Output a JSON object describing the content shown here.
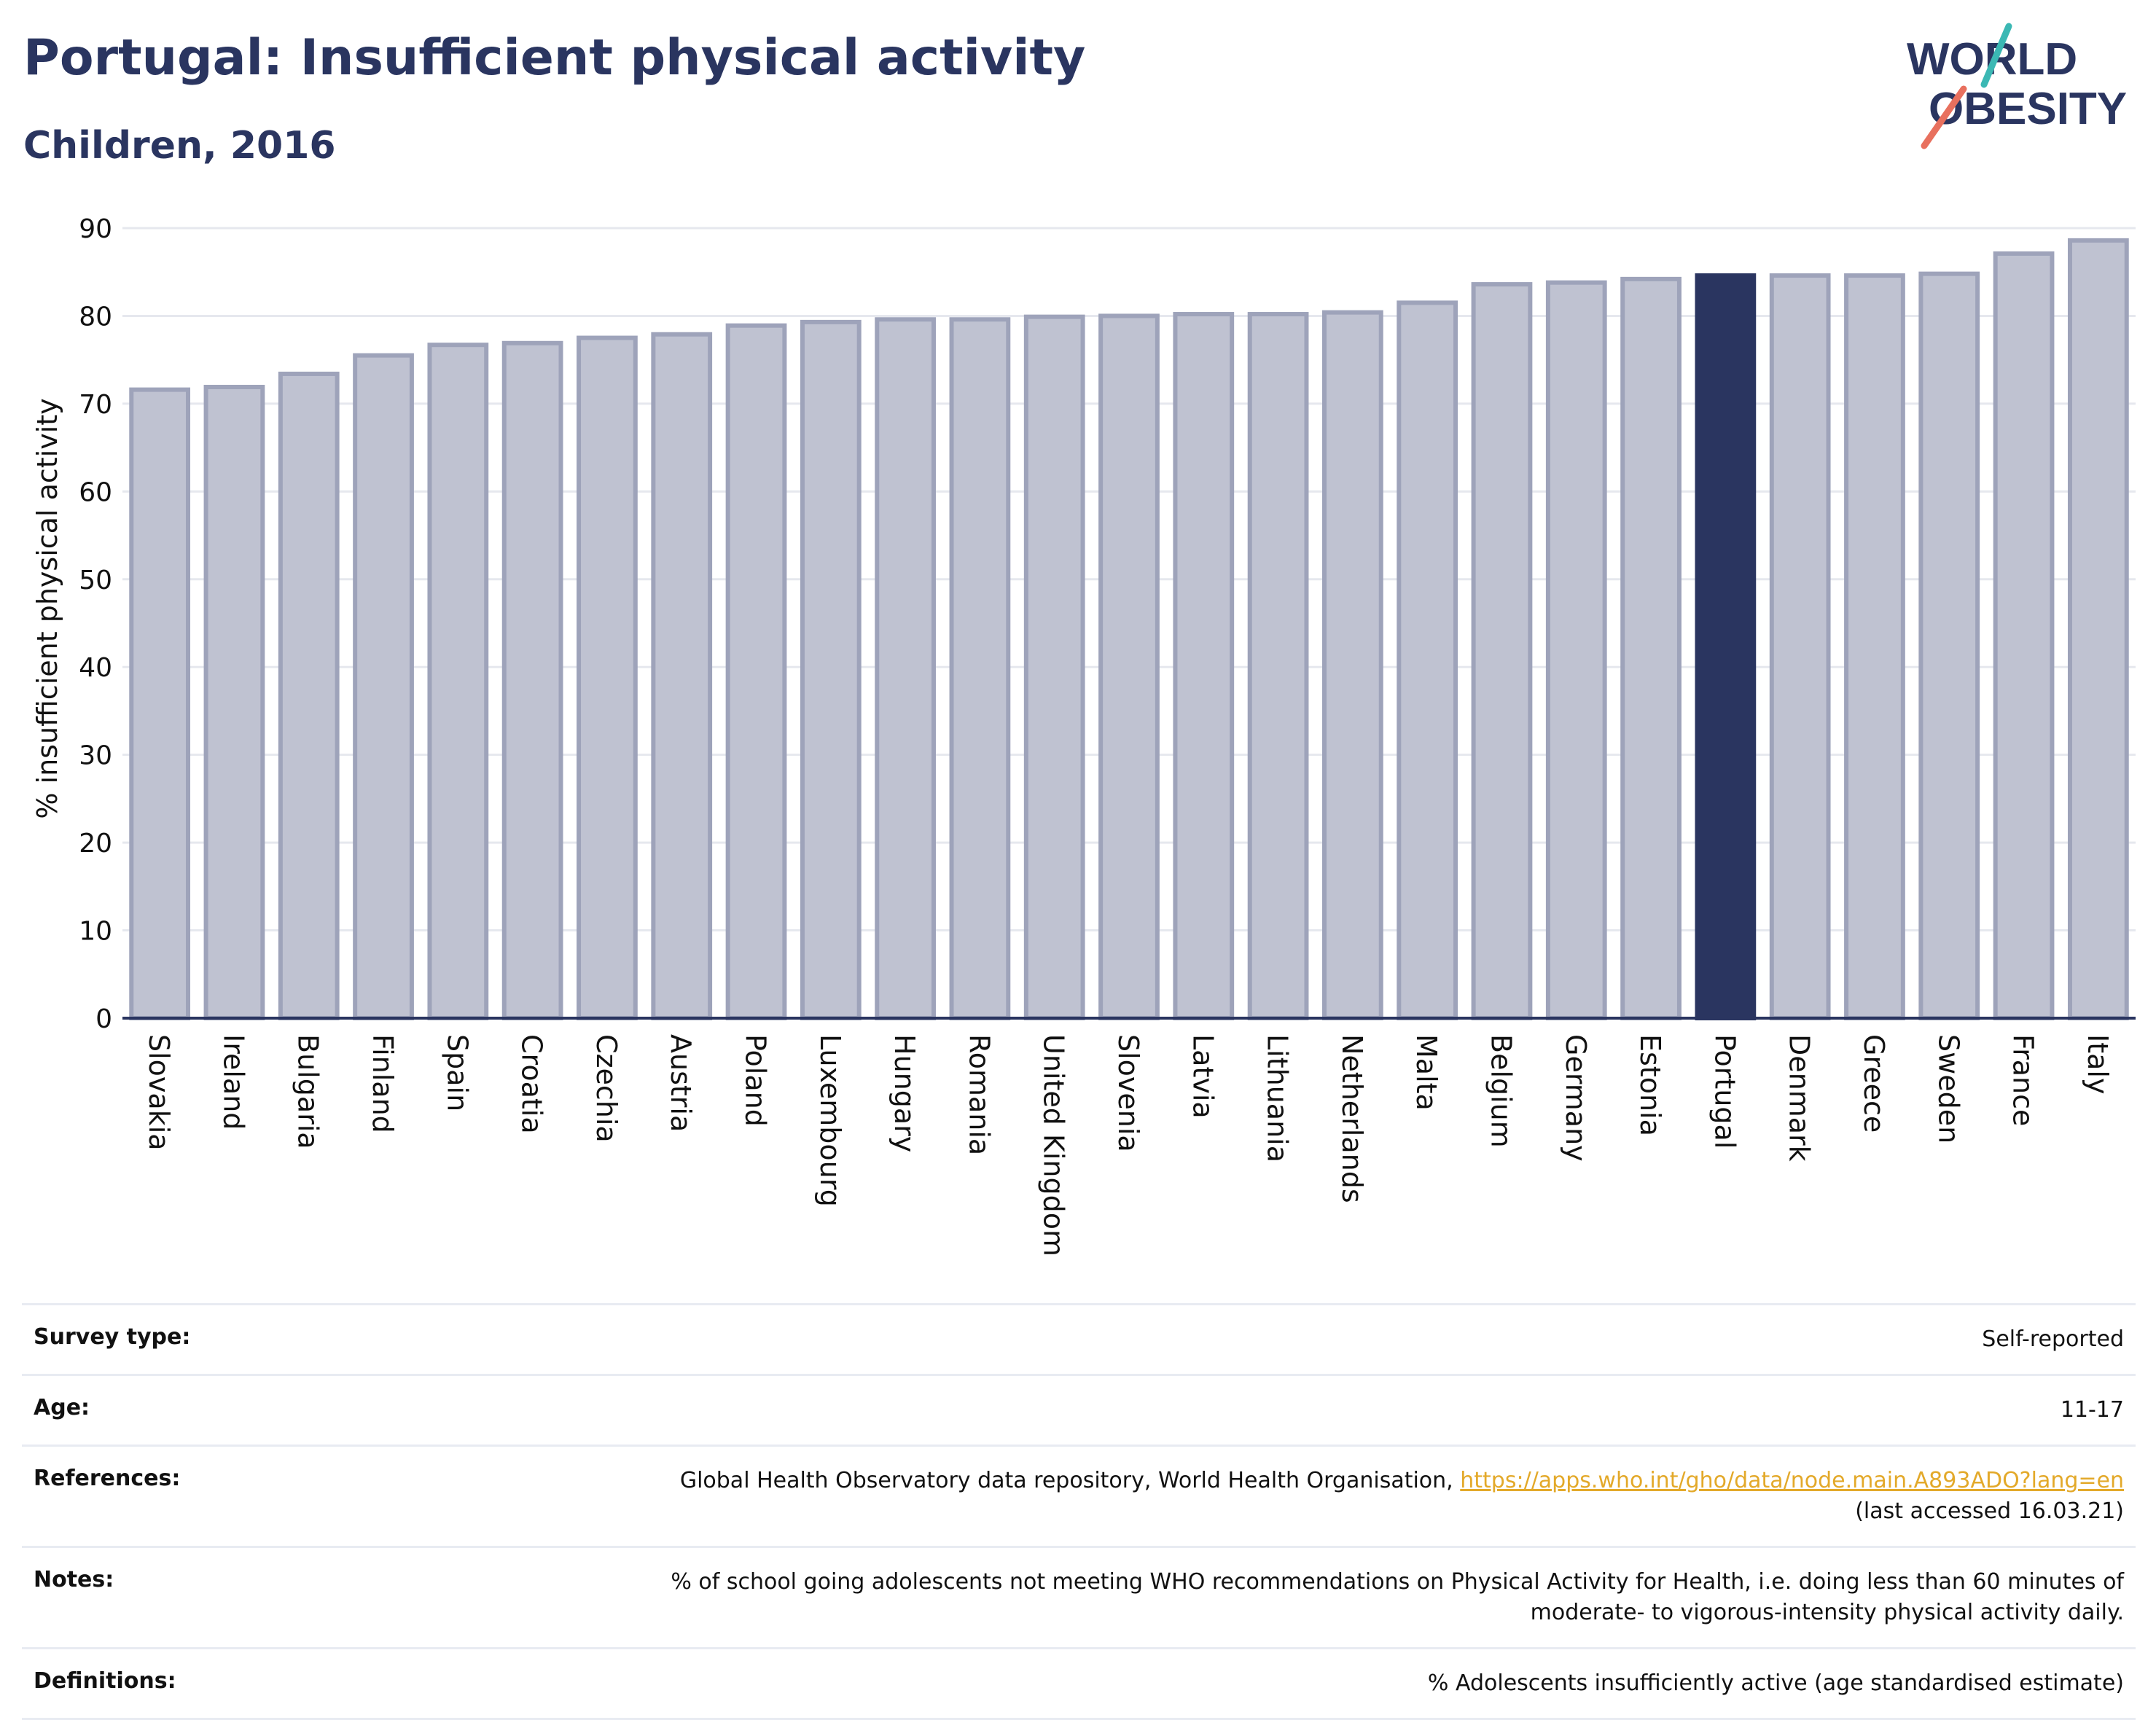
{
  "header": {
    "title": "Portugal: Insufficient physical activity",
    "subtitle": "Children, 2016"
  },
  "logo": {
    "line1": "WORLD",
    "line2": "OBESITY"
  },
  "chart_data": {
    "type": "bar",
    "ylabel": "% insufficient physical activity",
    "xlabel": "",
    "ylim": [
      0,
      90
    ],
    "yticks": [
      0,
      10,
      20,
      30,
      40,
      50,
      60,
      70,
      80,
      90
    ],
    "grid": true,
    "highlight": "Portugal",
    "colors": {
      "bar": "#bfc2d1",
      "bar_edge": "#9ea3ba",
      "highlight": "#2a3560",
      "grid": "#e6e8ee",
      "axis": "#2a3560"
    },
    "categories": [
      "Slovakia",
      "Ireland",
      "Bulgaria",
      "Finland",
      "Spain",
      "Croatia",
      "Czechia",
      "Austria",
      "Poland",
      "Luxembourg",
      "Hungary",
      "Romania",
      "United Kingdom",
      "Slovenia",
      "Latvia",
      "Lithuania",
      "Netherlands",
      "Malta",
      "Belgium",
      "Germany",
      "Estonia",
      "Portugal",
      "Denmark",
      "Greece",
      "Sweden",
      "France",
      "Italy"
    ],
    "values": [
      71.6,
      71.9,
      73.4,
      75.5,
      76.7,
      76.9,
      77.5,
      77.9,
      78.9,
      79.3,
      79.6,
      79.6,
      79.9,
      80.0,
      80.2,
      80.2,
      80.4,
      81.5,
      83.6,
      83.8,
      84.2,
      84.6,
      84.6,
      84.6,
      84.8,
      87.1,
      88.6
    ]
  },
  "meta": {
    "survey": {
      "label": "Survey type:",
      "value": "Self-reported"
    },
    "age": {
      "label": "Age:",
      "value": "11-17"
    },
    "references": {
      "label": "References:",
      "text": "Global Health Observatory data repository, World Health Organisation,",
      "link": "https://apps.who.int/gho/data/node.main.A893ADO?lang=en",
      "accessed": "(last accessed 16.03.21)"
    },
    "notes": {
      "label": "Notes:",
      "line1": "% of school going adolescents not meeting WHO recommendations on Physical Activity for Health, i.e. doing less than 60 minutes of",
      "line2": "moderate- to vigorous-intensity physical activity daily."
    },
    "definitions": {
      "label": "Definitions:",
      "value": "% Adolescents insufficiently active (age standardised estimate)"
    }
  }
}
